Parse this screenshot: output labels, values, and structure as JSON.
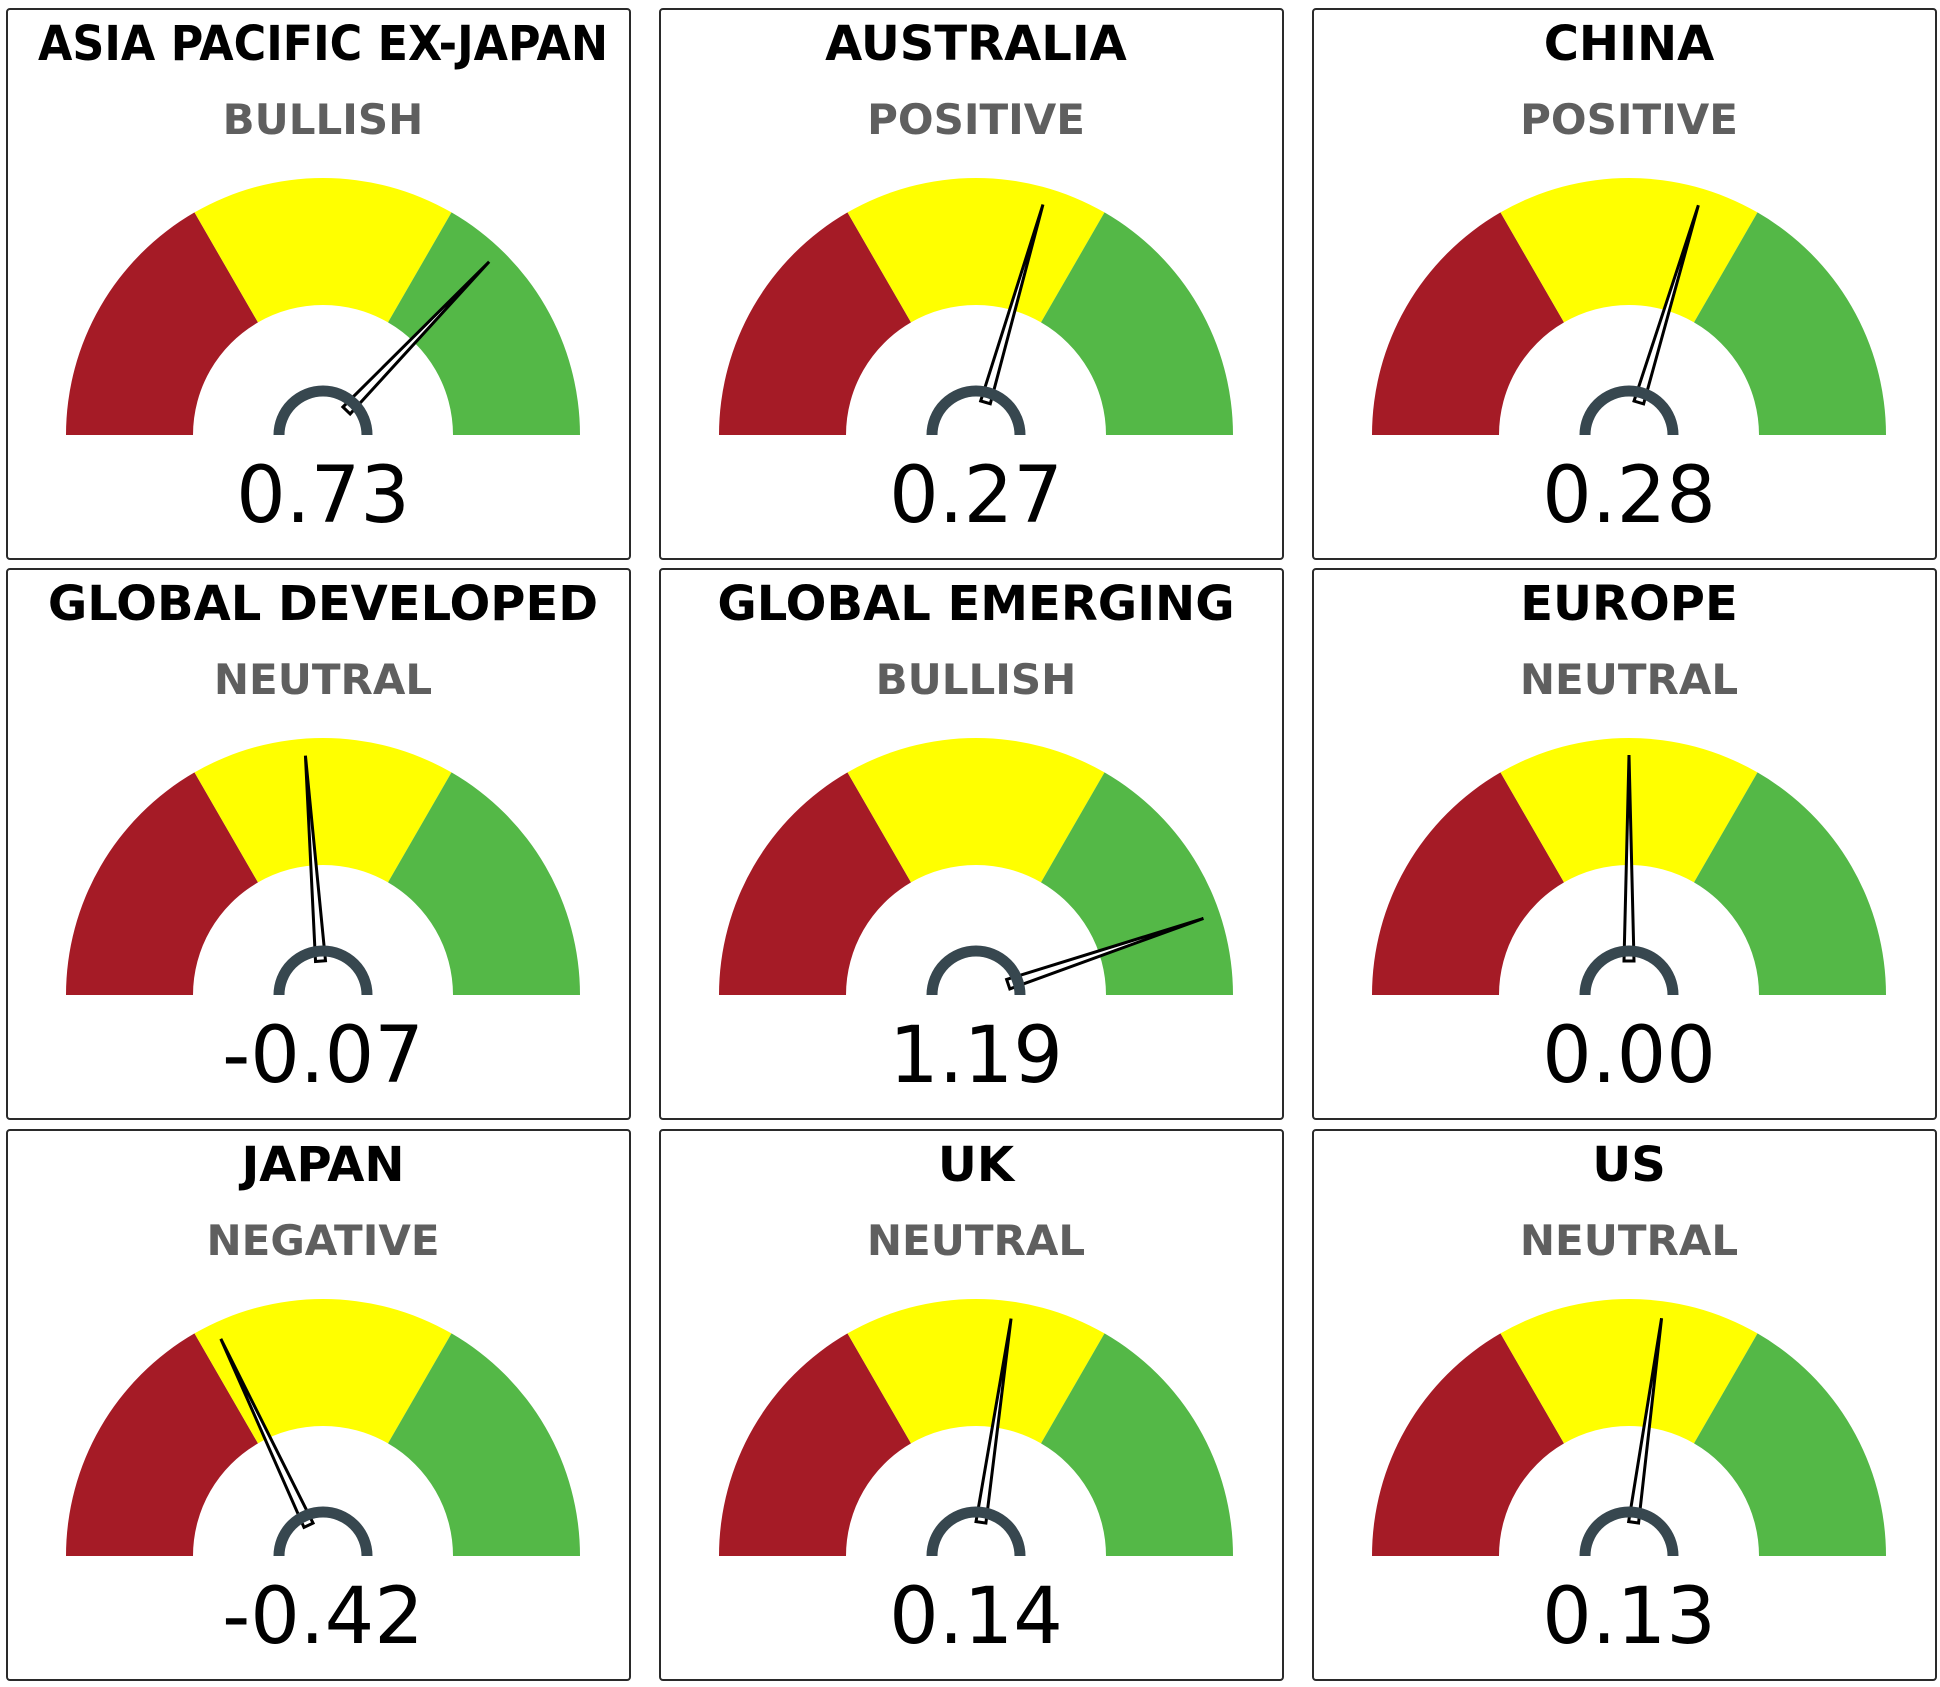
{
  "chart_data": [
    {
      "type": "gauge",
      "title": "ASIA PACIFIC EX-JAPAN",
      "sentiment": "BULLISH",
      "value": 0.73,
      "value_label": "0.73",
      "range": [
        -1.5,
        1.5
      ]
    },
    {
      "type": "gauge",
      "title": "AUSTRALIA",
      "sentiment": "POSITIVE",
      "value": 0.27,
      "value_label": "0.27",
      "range": [
        -1.5,
        1.5
      ]
    },
    {
      "type": "gauge",
      "title": "CHINA",
      "sentiment": "POSITIVE",
      "value": 0.28,
      "value_label": "0.28",
      "range": [
        -1.5,
        1.5
      ]
    },
    {
      "type": "gauge",
      "title": "GLOBAL DEVELOPED",
      "sentiment": "NEUTRAL",
      "value": -0.07,
      "value_label": "-0.07",
      "range": [
        -1.5,
        1.5
      ]
    },
    {
      "type": "gauge",
      "title": "GLOBAL EMERGING",
      "sentiment": "BULLISH",
      "value": 1.19,
      "value_label": "1.19",
      "range": [
        -1.5,
        1.5
      ]
    },
    {
      "type": "gauge",
      "title": "EUROPE",
      "sentiment": "NEUTRAL",
      "value": 0.0,
      "value_label": "0.00",
      "range": [
        -1.5,
        1.5
      ]
    },
    {
      "type": "gauge",
      "title": "JAPAN",
      "sentiment": "NEGATIVE",
      "value": -0.42,
      "value_label": "-0.42",
      "range": [
        -1.5,
        1.5
      ]
    },
    {
      "type": "gauge",
      "title": "UK",
      "sentiment": "NEUTRAL",
      "value": 0.14,
      "value_label": "0.14",
      "range": [
        -1.5,
        1.5
      ]
    },
    {
      "type": "gauge",
      "title": "US",
      "sentiment": "NEUTRAL",
      "value": 0.13,
      "value_label": "0.13",
      "range": [
        -1.5,
        1.5
      ]
    }
  ],
  "bands": [
    {
      "from": -1.5,
      "to": -0.5,
      "color": "#a51b26"
    },
    {
      "from": -0.5,
      "to": 0.5,
      "color": "#ffff00"
    },
    {
      "from": 0.5,
      "to": 1.5,
      "color": "#54b847"
    }
  ],
  "colors": {
    "needle": "#000000",
    "hub": "#37474f",
    "sentiment_text": "#5f5f5f"
  }
}
